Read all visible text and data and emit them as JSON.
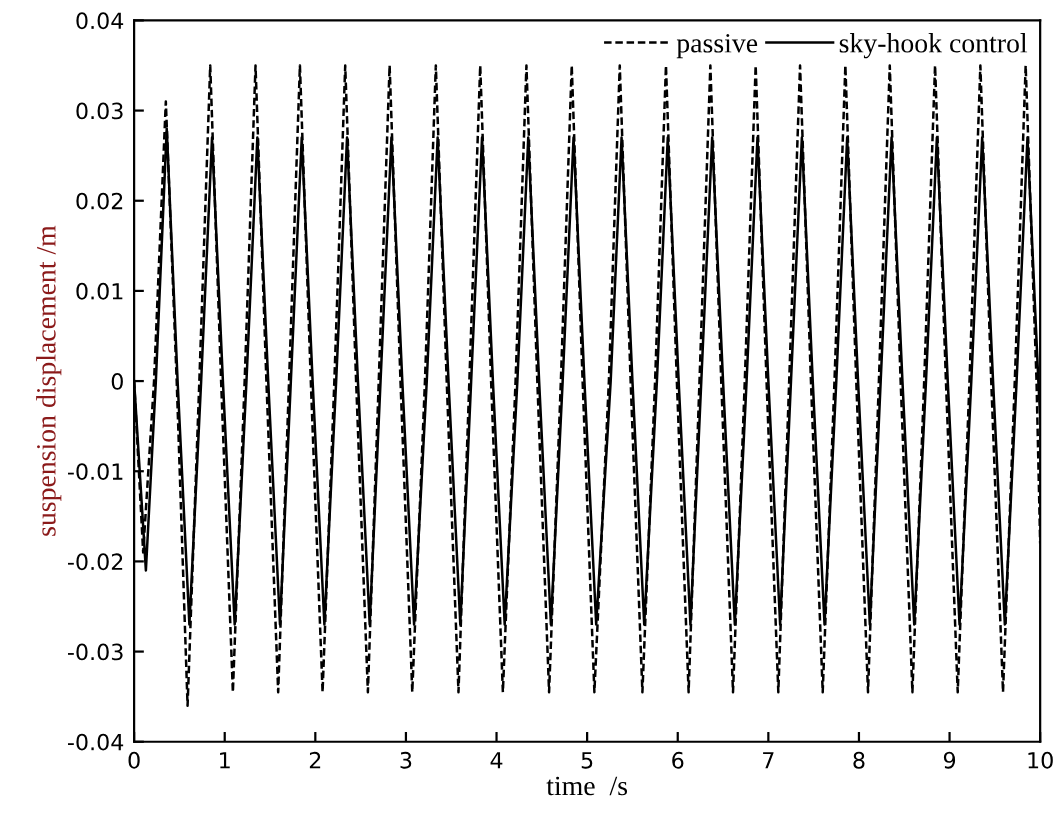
{
  "chart_data": {
    "type": "line",
    "xlabel": "time  /s",
    "ylabel": "suspension displacement /m",
    "xlim": [
      0,
      10
    ],
    "ylim": [
      -0.04,
      0.04
    ],
    "xticks": [
      0,
      1,
      2,
      3,
      4,
      5,
      6,
      7,
      8,
      9,
      10
    ],
    "yticks": [
      -0.04,
      -0.03,
      -0.02,
      -0.01,
      0,
      0.01,
      0.02,
      0.03,
      0.04
    ],
    "grid": false,
    "legend": "top right",
    "series": [
      {
        "name": "passive",
        "color": "#000000",
        "line_style": "dashed",
        "x": [
          0,
          0.1,
          0.22,
          0.35,
          0.47,
          0.59,
          0.72,
          0.84,
          0.96,
          1.09,
          1.22,
          1.34,
          1.46,
          1.59,
          1.71,
          1.83,
          1.95,
          2.08,
          2.21,
          2.33,
          2.45,
          2.58,
          2.7,
          2.82,
          2.94,
          3.07,
          3.21,
          3.33,
          3.45,
          3.58,
          3.7,
          3.82,
          3.94,
          4.07,
          4.21,
          4.33,
          4.45,
          4.58,
          4.71,
          4.83,
          4.95,
          5.08,
          5.24,
          5.36,
          5.48,
          5.61,
          5.75,
          5.87,
          5.99,
          6.12,
          6.24,
          6.36,
          6.48,
          6.61,
          6.74,
          6.86,
          6.98,
          7.11,
          7.23,
          7.35,
          7.47,
          7.6,
          7.73,
          7.85,
          7.97,
          8.1,
          8.22,
          8.34,
          8.46,
          8.59,
          8.72,
          8.84,
          8.96,
          9.09,
          9.22,
          9.34,
          9.46,
          9.59,
          9.72,
          9.84,
          9.96,
          10
        ],
        "values": [
          0,
          -0.019,
          0,
          0.031,
          0,
          -0.036,
          0,
          0.035,
          0,
          -0.0345,
          0,
          0.035,
          0,
          -0.0345,
          0,
          0.035,
          0,
          -0.0345,
          0,
          0.035,
          0,
          -0.0345,
          0,
          0.035,
          0,
          -0.0345,
          0,
          0.035,
          0,
          -0.0345,
          0,
          0.035,
          0,
          -0.0345,
          0,
          0.035,
          0,
          -0.0345,
          0,
          0.035,
          0,
          -0.0345,
          0,
          0.035,
          0,
          -0.0345,
          0,
          0.035,
          0,
          -0.0345,
          0,
          0.035,
          0,
          -0.0345,
          0,
          0.035,
          0,
          -0.0345,
          0,
          0.035,
          0,
          -0.0345,
          0,
          0.035,
          0,
          -0.0345,
          0,
          0.035,
          0,
          -0.0345,
          0,
          0.035,
          0,
          -0.0345,
          0,
          0.035,
          0,
          -0.0345,
          0,
          0.035,
          0,
          -0.018
        ]
      },
      {
        "name": "sky-hook control",
        "color": "#000000",
        "line_style": "solid",
        "x": [
          0,
          0.13,
          0.24,
          0.36,
          0.48,
          0.61,
          0.74,
          0.86,
          0.98,
          1.11,
          1.24,
          1.36,
          1.48,
          1.61,
          1.73,
          1.85,
          1.97,
          2.1,
          2.23,
          2.35,
          2.47,
          2.6,
          2.72,
          2.84,
          2.96,
          3.09,
          3.23,
          3.35,
          3.47,
          3.6,
          3.72,
          3.84,
          3.96,
          4.09,
          4.23,
          4.35,
          4.47,
          4.6,
          4.73,
          4.85,
          4.97,
          5.1,
          5.26,
          5.38,
          5.5,
          5.63,
          5.77,
          5.89,
          6.01,
          6.14,
          6.26,
          6.38,
          6.5,
          6.63,
          6.76,
          6.88,
          7.0,
          7.13,
          7.25,
          7.37,
          7.49,
          7.62,
          7.75,
          7.87,
          7.99,
          8.12,
          8.24,
          8.36,
          8.48,
          8.61,
          8.74,
          8.86,
          8.98,
          9.11,
          9.24,
          9.36,
          9.48,
          9.61,
          9.74,
          9.86,
          9.98,
          10
        ],
        "values": [
          0,
          -0.021,
          0,
          0.028,
          0,
          -0.027,
          0,
          0.027,
          0,
          -0.027,
          0,
          0.027,
          0,
          -0.027,
          0,
          0.027,
          0,
          -0.027,
          0,
          0.027,
          0,
          -0.027,
          0,
          0.027,
          0,
          -0.027,
          0,
          0.027,
          0,
          -0.027,
          0,
          0.027,
          0,
          -0.027,
          0,
          0.027,
          0,
          -0.027,
          0,
          0.027,
          0,
          -0.027,
          0,
          0.027,
          0,
          -0.027,
          0,
          0.027,
          0,
          -0.027,
          0,
          0.027,
          0,
          -0.027,
          0,
          0.027,
          0,
          -0.027,
          0,
          0.027,
          0,
          -0.027,
          0,
          0.027,
          0,
          -0.027,
          0,
          0.027,
          0,
          -0.027,
          0,
          0.027,
          0,
          -0.027,
          0,
          0.027,
          0,
          -0.027,
          0,
          0.027,
          0,
          -0.004
        ]
      }
    ]
  }
}
